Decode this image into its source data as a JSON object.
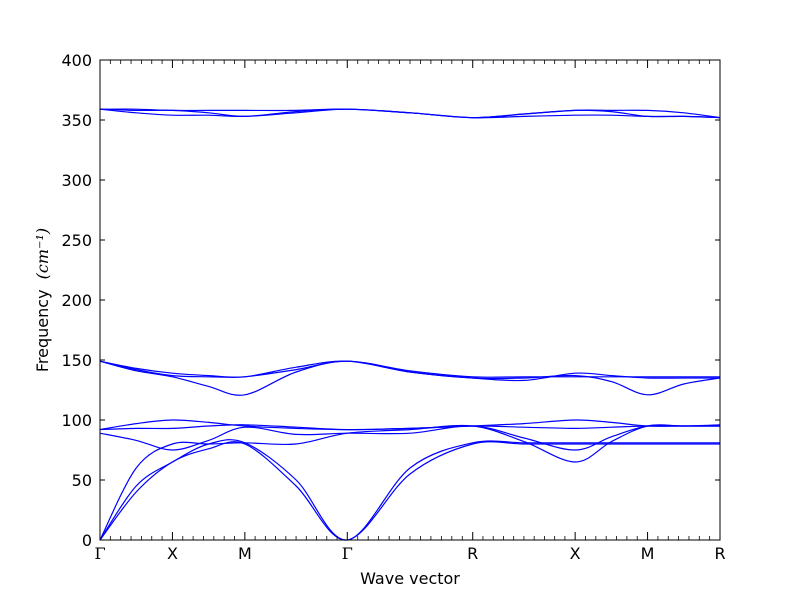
{
  "chart_data": {
    "type": "line",
    "xlabel": "Wave vector",
    "ylabel": "Frequency",
    "ylabel_unit": "(cm⁻¹)",
    "ylim": [
      0,
      400
    ],
    "y_ticks": [
      0,
      50,
      100,
      150,
      200,
      250,
      300,
      350,
      400
    ],
    "grid": false,
    "line_color": "#0000ff",
    "path_points": [
      {
        "label": "Γ",
        "x": 0.0
      },
      {
        "label": "X",
        "x": 0.5
      },
      {
        "label": "M",
        "x": 1.0
      },
      {
        "label": "Γ",
        "x": 1.707
      },
      {
        "label": "R",
        "x": 2.573
      },
      {
        "label": "X",
        "x": 3.28
      },
      {
        "label": "M",
        "x": 3.78
      },
      {
        "label": "R",
        "x": 4.28
      }
    ],
    "series": [
      {
        "x": [
          0,
          0.25,
          0.5,
          0.75,
          1.0,
          1.354,
          1.707,
          2.14,
          2.573,
          2.927,
          3.28,
          3.53,
          3.78,
          4.03,
          4.28
        ],
        "values": [
          0,
          40,
          65,
          76,
          80,
          45,
          0,
          55,
          80,
          80,
          80,
          80,
          80,
          80,
          80
        ]
      },
      {
        "x": [
          0,
          0.25,
          0.5,
          0.75,
          1.0,
          1.354,
          1.707,
          2.14,
          2.573,
          2.927,
          3.28,
          3.53,
          3.78,
          4.03,
          4.28
        ],
        "values": [
          0,
          45,
          65,
          80,
          81,
          50,
          0,
          60,
          81,
          81,
          81,
          81,
          81,
          81,
          81
        ]
      },
      {
        "x": [
          0,
          0.25,
          0.5,
          0.75,
          1.0,
          1.354,
          1.707,
          2.14,
          2.573,
          2.927,
          3.28,
          3.53,
          3.78,
          4.03,
          4.28
        ],
        "values": [
          0,
          60,
          80,
          80,
          81,
          80,
          89,
          92,
          95,
          82,
          65,
          82,
          95,
          95,
          95
        ]
      },
      {
        "x": [
          0,
          0.25,
          0.5,
          0.75,
          1.0,
          1.354,
          1.707,
          2.14,
          2.573,
          2.927,
          3.28,
          3.53,
          3.78,
          4.03,
          4.28
        ],
        "values": [
          89,
          83,
          75,
          83,
          94,
          88,
          89,
          89,
          95,
          85,
          75,
          86,
          95,
          95,
          95
        ]
      },
      {
        "x": [
          0,
          0.25,
          0.5,
          0.75,
          1.0,
          1.354,
          1.707,
          2.14,
          2.573,
          2.927,
          3.28,
          3.53,
          3.78,
          4.03,
          4.28
        ],
        "values": [
          92,
          93,
          93,
          95,
          96,
          94,
          92,
          93,
          95,
          94,
          93,
          94,
          95,
          95,
          96
        ]
      },
      {
        "x": [
          0,
          0.25,
          0.5,
          0.75,
          1.0,
          1.354,
          1.707,
          2.14,
          2.573,
          2.927,
          3.28,
          3.53,
          3.78,
          4.03,
          4.28
        ],
        "values": [
          92,
          97,
          100,
          98,
          95,
          93,
          92,
          93,
          95,
          97,
          100,
          98,
          95,
          95,
          95
        ]
      },
      {
        "x": [
          0,
          0.25,
          0.5,
          0.75,
          1.0,
          1.354,
          1.707,
          2.14,
          2.573,
          2.927,
          3.28,
          3.53,
          3.78,
          4.03,
          4.28
        ],
        "values": [
          149,
          141,
          136,
          128,
          121,
          140,
          149,
          140,
          135,
          135,
          137,
          132,
          121,
          130,
          135
        ]
      },
      {
        "x": [
          0,
          0.25,
          0.5,
          0.75,
          1.0,
          1.354,
          1.707,
          2.14,
          2.573,
          2.927,
          3.28,
          3.53,
          3.78,
          4.03,
          4.28
        ],
        "values": [
          149,
          143,
          139,
          137,
          136,
          144,
          149,
          140,
          135,
          133,
          139,
          137,
          135,
          135,
          135
        ]
      },
      {
        "x": [
          0,
          0.25,
          0.5,
          0.75,
          1.0,
          1.354,
          1.707,
          2.14,
          2.573,
          2.927,
          3.28,
          3.53,
          3.78,
          4.03,
          4.28
        ],
        "values": [
          149,
          142,
          137,
          136,
          136,
          142,
          149,
          141,
          136,
          136,
          136,
          136,
          136,
          136,
          136
        ]
      },
      {
        "x": [
          0,
          0.25,
          0.5,
          0.75,
          1.0,
          1.354,
          1.707,
          2.14,
          2.573,
          2.927,
          3.28,
          3.53,
          3.78,
          4.03,
          4.28
        ],
        "values": [
          359,
          356,
          354,
          354,
          353,
          356,
          359,
          356,
          352,
          353,
          354,
          354,
          353,
          353,
          352
        ]
      },
      {
        "x": [
          0,
          0.25,
          0.5,
          0.75,
          1.0,
          1.354,
          1.707,
          2.14,
          2.573,
          2.927,
          3.28,
          3.53,
          3.78,
          4.03,
          4.28
        ],
        "values": [
          359,
          358,
          358,
          356,
          353,
          357,
          359,
          356,
          352,
          355,
          358,
          358,
          358,
          356,
          352
        ]
      },
      {
        "x": [
          0,
          0.25,
          0.5,
          0.75,
          1.0,
          1.354,
          1.707,
          2.14,
          2.573,
          2.927,
          3.28,
          3.53,
          3.78,
          4.03,
          4.28
        ],
        "values": [
          359,
          359,
          358,
          358,
          358,
          358,
          359,
          356,
          352,
          355,
          358,
          357,
          353,
          353,
          352
        ]
      }
    ]
  }
}
